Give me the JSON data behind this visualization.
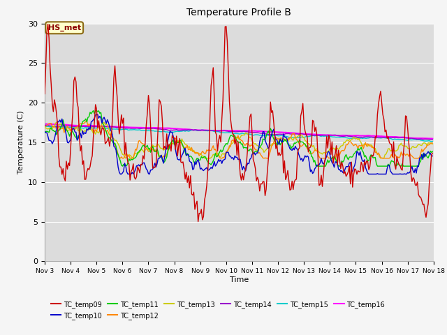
{
  "title": "Temperature Profile B",
  "xlabel": "Time",
  "ylabel": "Temperature (C)",
  "ylim": [
    0,
    30
  ],
  "xlim": [
    0,
    360
  ],
  "annotation_label": "HS_met",
  "plot_bg_color": "#dcdcdc",
  "fig_bg_color": "#f5f5f5",
  "series": {
    "TC_temp09": {
      "color": "#cc0000",
      "linewidth": 1.0,
      "zorder": 8
    },
    "TC_temp10": {
      "color": "#0000cc",
      "linewidth": 1.0,
      "zorder": 7
    },
    "TC_temp11": {
      "color": "#00cc00",
      "linewidth": 1.0,
      "zorder": 6
    },
    "TC_temp12": {
      "color": "#ff8800",
      "linewidth": 1.0,
      "zorder": 5
    },
    "TC_temp13": {
      "color": "#cccc00",
      "linewidth": 1.0,
      "zorder": 4
    },
    "TC_temp14": {
      "color": "#9900cc",
      "linewidth": 1.0,
      "zorder": 3
    },
    "TC_temp15": {
      "color": "#00cccc",
      "linewidth": 1.0,
      "zorder": 2
    },
    "TC_temp16": {
      "color": "#ff00ff",
      "linewidth": 1.5,
      "zorder": 1
    }
  },
  "xtick_labels": [
    "Nov 3",
    "Nov 4",
    "Nov 5",
    "Nov 6",
    "Nov 7",
    "Nov 8",
    "Nov 9",
    "Nov 10",
    "Nov 11",
    "Nov 12",
    "Nov 13",
    "Nov 14",
    "Nov 15",
    "Nov 16",
    "Nov 17",
    "Nov 18"
  ],
  "ytick_labels": [
    "0",
    "5",
    "10",
    "15",
    "20",
    "25",
    "30"
  ]
}
